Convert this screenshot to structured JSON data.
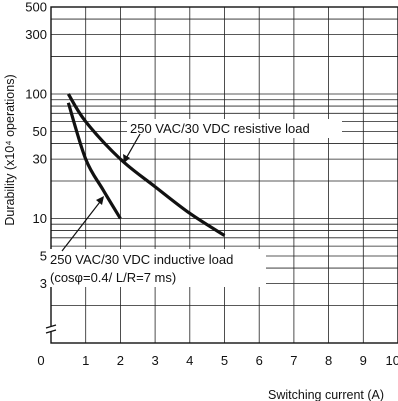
{
  "chart_data": {
    "type": "line",
    "xlabel": "Switching current (A)",
    "ylabel": "Durability (x10⁴ operations)",
    "x_ticks": [
      "0",
      "1",
      "2",
      "3",
      "4",
      "5",
      "6",
      "7",
      "8",
      "9",
      "10"
    ],
    "y_tick_labels": [
      "500",
      "300",
      "100",
      "50",
      "30",
      "10",
      "5",
      "3"
    ],
    "y_tick_values": [
      500,
      300,
      100,
      50,
      30,
      10,
      5,
      3
    ],
    "xlim": [
      0,
      10
    ],
    "ylim": [
      1,
      500
    ],
    "y_scale": "log",
    "grid": true,
    "series": [
      {
        "name": "250 VAC/30 VDC resistive load",
        "x": [
          0.5,
          1,
          2,
          3,
          4,
          5
        ],
        "y": [
          100,
          60,
          30,
          18,
          11,
          7.3
        ]
      },
      {
        "name": "250 VAC/30 VDC inductive load",
        "x": [
          0.5,
          1,
          1.5,
          2
        ],
        "y": [
          85,
          30,
          17,
          10
        ]
      }
    ],
    "annotations": [
      {
        "text": "250 VAC/30 VDC resistive load"
      },
      {
        "text": "250 VAC/30 VDC inductive load"
      },
      {
        "text": "(cosφ=0.4/ L/R=7 ms)"
      }
    ]
  }
}
